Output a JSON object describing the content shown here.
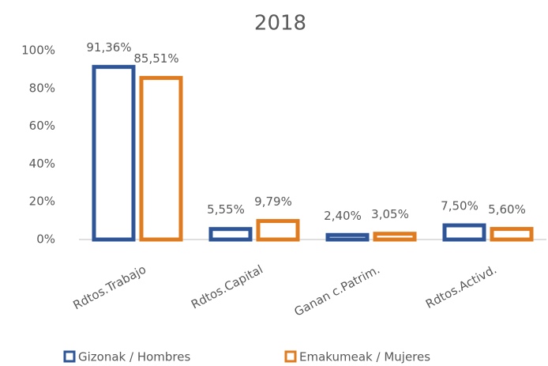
{
  "chart_data": {
    "type": "bar",
    "title": "2018",
    "categories": [
      "Rdtos.Trabajo",
      "Rdtos.Capital",
      "Ganan c.Patrim.",
      "Rdtos.Activd."
    ],
    "series": [
      {
        "name": "Gizonak / Hombres",
        "color": "#2e5597",
        "values": [
          91.36,
          5.55,
          2.4,
          7.5
        ],
        "value_labels": [
          "91,36%",
          "5,55%",
          "2,40%",
          "7,50%"
        ]
      },
      {
        "name": "Emakumeak / Mujeres",
        "color": "#e07b1f",
        "values": [
          85.51,
          9.79,
          3.05,
          5.6
        ],
        "value_labels": [
          "85,51%",
          "9,79%",
          "3,05%",
          "5,60%"
        ]
      }
    ],
    "ylim": [
      0,
      100
    ],
    "yticks": [
      {
        "value": 0,
        "label": "0%"
      },
      {
        "value": 20,
        "label": "20%"
      },
      {
        "value": 40,
        "label": "40%"
      },
      {
        "value": 60,
        "label": "60%"
      },
      {
        "value": 80,
        "label": "80%"
      },
      {
        "value": 100,
        "label": "100%"
      }
    ],
    "grid": false
  }
}
